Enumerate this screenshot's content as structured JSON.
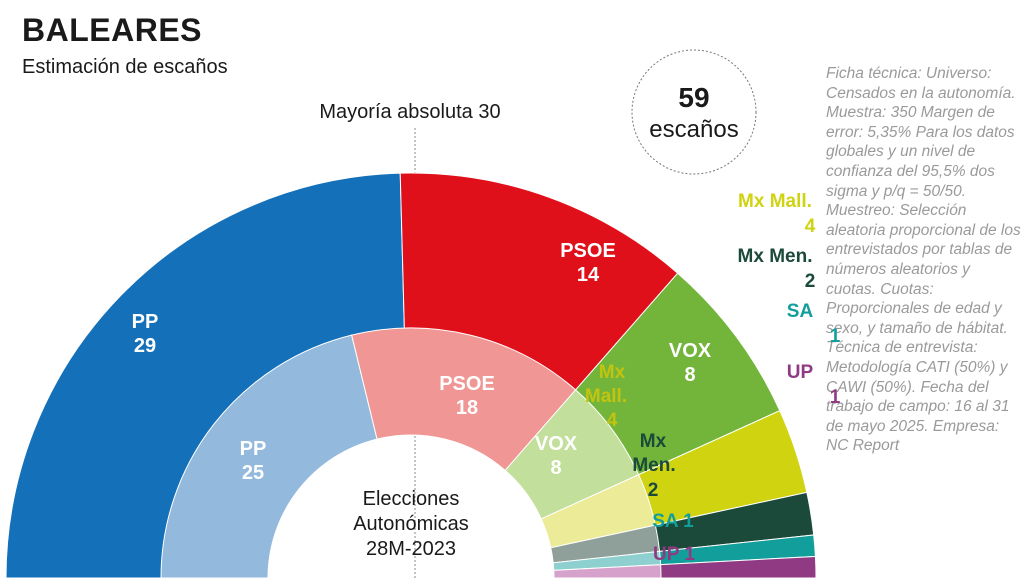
{
  "header": {
    "title": "BALEARES",
    "subtitle": "Estimación de escaños"
  },
  "ficha_tecnica": "Ficha técnica: Universo: Censados en la autonomía. Muestra: 350 Margen de error: 5,35% Para los datos globales y un nivel de confianza del 95,5% dos sigma y p/q = 50/50. Muestreo: Selección aleatoria proporcional de los entrevistados por tablas de números aleatorios y cuotas. Cuotas: Proporcionales de edad y sexo, y tamaño de hábitat. Técnica de entrevista: Metodología CATI (50%) y CAWI (50%). Fecha del trabajo de campo: 16 al 31 de mayo 2025. Empresa: NC Report",
  "chart_data": {
    "type": "hemicycle",
    "total_seats": 59,
    "total_label_number": "59",
    "total_label_text": "escaños",
    "majority_label": "Mayoría absoluta 30",
    "majority": 30,
    "outer_ring": {
      "name": "Estimación de escaños",
      "parties": [
        {
          "party": "PP",
          "seats": 29,
          "color": "#1470b8",
          "label": "PP",
          "value_label": "29"
        },
        {
          "party": "PSOE",
          "seats": 14,
          "color": "#e0101a",
          "label": "PSOE",
          "value_label": "14"
        },
        {
          "party": "VOX",
          "seats": 8,
          "color": "#72b53a",
          "label": "VOX",
          "value_label": "8"
        },
        {
          "party": "Mx Mall.",
          "seats": 4,
          "color": "#cfd310",
          "label": "Mx Mall.",
          "value_label": "4"
        },
        {
          "party": "Mx Men.",
          "seats": 2,
          "color": "#1c4a3a",
          "label": "Mx Men.",
          "value_label": "2"
        },
        {
          "party": "SA",
          "seats": 1,
          "color": "#129e9a",
          "label": "SA",
          "value_label": "1"
        },
        {
          "party": "UP",
          "seats": 1,
          "color": "#8f3a82",
          "label": "UP",
          "value_label": "1"
        }
      ]
    },
    "inner_ring": {
      "name": "Elecciones Autonómicas 28M-2023",
      "center_label": [
        "Elecciones",
        "Autonómicas",
        "28M-2023"
      ],
      "parties": [
        {
          "party": "PP",
          "seats": 25,
          "color": "#93b9dd",
          "label": "PP",
          "value_label": "25"
        },
        {
          "party": "PSOE",
          "seats": 18,
          "color": "#f09694",
          "label": "PSOE",
          "value_label": "18"
        },
        {
          "party": "VOX",
          "seats": 8,
          "color": "#c3df9c",
          "label": "VOX",
          "value_label": "8"
        },
        {
          "party": "Mx Mall.",
          "seats": 4,
          "color": "#ebeb98",
          "label": "Mx Mall.",
          "value_label": "4"
        },
        {
          "party": "Mx Men.",
          "seats": 2,
          "color": "#8f9f99",
          "label": "Mx Men.",
          "value_label": "2"
        },
        {
          "party": "SA",
          "seats": 1,
          "color": "#8ed0cf",
          "label": "SA",
          "value_label": "1"
        },
        {
          "party": "UP",
          "seats": 1,
          "color": "#d6a1cb",
          "label": "UP",
          "value_label": "1"
        }
      ]
    }
  }
}
